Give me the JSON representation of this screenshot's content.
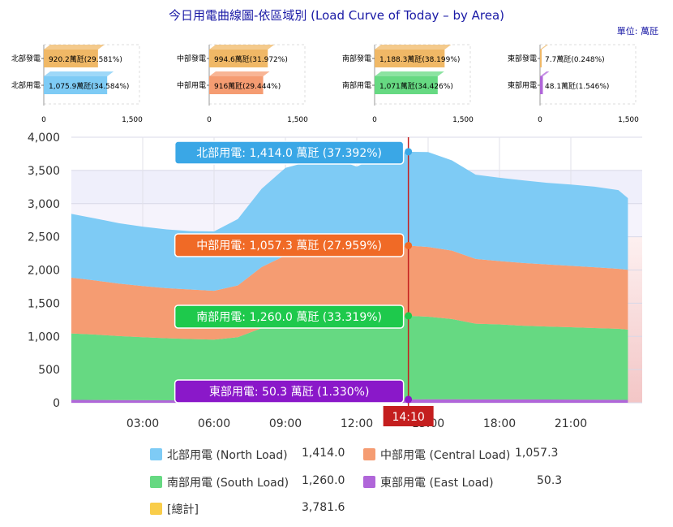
{
  "title": "今日用電曲線圖-依區域別 (Load Curve of Today – by Area)",
  "unit_label": "單位: 萬瓩",
  "colors": {
    "north": "#7ecbf5",
    "central": "#f59c72",
    "south": "#66d982",
    "east": "#b066d9",
    "total": "#f9cd4a",
    "north_tag": "#3aa7e6",
    "central_tag": "#f06a26",
    "south_tag": "#1ec94c",
    "east_tag": "#8a18c9",
    "gen": "#f0b866",
    "time_marker": "#c41e1e"
  },
  "mini_charts": [
    {
      "rows": [
        {
          "label": "北部發電",
          "value": 920.2,
          "text": "920.2萬瓩(29.581%)",
          "kind": "gen"
        },
        {
          "label": "北部用電",
          "value": 1075.9,
          "text": "1,075.9萬瓩(34.584%)",
          "kind": "north"
        }
      ],
      "ticks": [
        "0",
        "1,500"
      ]
    },
    {
      "rows": [
        {
          "label": "中部發電",
          "value": 994.6,
          "text": "994.6萬瓩(31.972%)",
          "kind": "gen"
        },
        {
          "label": "中部用電",
          "value": 916,
          "text": "916萬瓩(29.444%)",
          "kind": "central"
        }
      ],
      "ticks": [
        "0",
        "1,500"
      ]
    },
    {
      "rows": [
        {
          "label": "南部發電",
          "value": 1188.3,
          "text": "1,188.3萬瓩(38.199%)",
          "kind": "gen"
        },
        {
          "label": "南部用電",
          "value": 1071,
          "text": "1,071萬瓩(34.426%)",
          "kind": "south"
        }
      ],
      "ticks": [
        "0",
        "1,500"
      ]
    },
    {
      "rows": [
        {
          "label": "東部發電",
          "value": 7.7,
          "text": "7.7萬瓩(0.248%)",
          "kind": "gen"
        },
        {
          "label": "東部用電",
          "value": 48.1,
          "text": "48.1萬瓩(1.546%)",
          "kind": "east"
        }
      ],
      "ticks": [
        "0",
        "1,500"
      ]
    }
  ],
  "chart_data": {
    "type": "area",
    "stacked": true,
    "xlim": [
      0,
      24
    ],
    "ylim": [
      0,
      4000
    ],
    "x_ticks": [
      "03:00",
      "06:00",
      "09:00",
      "12:00",
      "15:00",
      "18:00",
      "21:00"
    ],
    "y_ticks": [
      "0",
      "500",
      "1,000",
      "1,500",
      "2,000",
      "2,500",
      "3,000",
      "3,500",
      "4,000"
    ],
    "x_hours": [
      0,
      1,
      2,
      3,
      4,
      5,
      6,
      7,
      8,
      9,
      10,
      11,
      12,
      13,
      14.17,
      15,
      16,
      17,
      18,
      19,
      20,
      21,
      22,
      23,
      23.4
    ],
    "series": [
      {
        "name": "東部用電",
        "key": "east",
        "values": [
          45,
          42,
          40,
          38,
          37,
          36,
          36,
          38,
          44,
          48,
          50,
          50,
          48,
          49,
          50,
          52,
          52,
          51,
          50,
          50,
          49,
          48,
          46,
          44,
          43
        ]
      },
      {
        "name": "南部用電",
        "key": "south",
        "values": [
          1000,
          985,
          965,
          950,
          935,
          925,
          915,
          950,
          1080,
          1180,
          1215,
          1230,
          1210,
          1245,
          1260,
          1245,
          1210,
          1140,
          1130,
          1110,
          1100,
          1090,
          1080,
          1070,
          1060
        ]
      },
      {
        "name": "中部用電",
        "key": "central",
        "values": [
          840,
          815,
          790,
          770,
          755,
          745,
          735,
          780,
          920,
          990,
          1025,
          1040,
          1010,
          1045,
          1057,
          1050,
          1030,
          975,
          955,
          945,
          935,
          925,
          915,
          905,
          900
        ]
      },
      {
        "name": "北部用電",
        "key": "north",
        "values": [
          960,
          935,
          910,
          895,
          885,
          880,
          895,
          1000,
          1180,
          1320,
          1345,
          1360,
          1290,
          1380,
          1414,
          1430,
          1360,
          1270,
          1255,
          1245,
          1230,
          1225,
          1215,
          1185,
          1080
        ]
      }
    ],
    "bands": [
      {
        "from": 0,
        "to": 2500,
        "color": "#f5cccc"
      },
      {
        "from": 2500,
        "to": 3000,
        "color": "#f2f0fb"
      },
      {
        "from": 3000,
        "to": 3500,
        "color": "#ebebfa"
      }
    ],
    "current": {
      "time": "14:10",
      "hour": 14.17
    },
    "tooltips": [
      {
        "key": "north",
        "text": "北部用電: 1,414.0 萬瓩 (37.392%)",
        "value": 3781.6
      },
      {
        "key": "central",
        "text": "中部用電: 1,057.3 萬瓩 (27.959%)",
        "value": 2367.6
      },
      {
        "key": "south",
        "text": "南部用電: 1,260.0 萬瓩 (33.319%)",
        "value": 1310.3
      },
      {
        "key": "east",
        "text": "東部用電: 50.3 萬瓩 (1.330%)",
        "value": 50.3
      }
    ]
  },
  "legend": [
    {
      "key": "north",
      "label": "北部用電 (North Load)",
      "value": "1,414.0"
    },
    {
      "key": "central",
      "label": "中部用電 (Central Load)",
      "value": "1,057.3"
    },
    {
      "key": "south",
      "label": "南部用電 (South Load)",
      "value": "1,260.0"
    },
    {
      "key": "east",
      "label": "東部用電 (East Load)",
      "value": "50.3"
    },
    {
      "key": "total",
      "label": "[總計]",
      "value": "3,781.6"
    }
  ]
}
